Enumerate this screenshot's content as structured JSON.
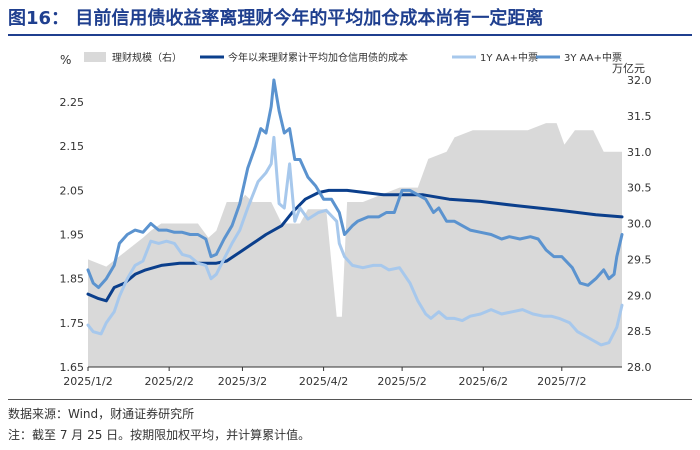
{
  "figure": {
    "title": "图16：    目前信用债收益率离理财今年的平均加仓成本尚有一定距离",
    "source_note": "数据来源：Wind，财通证券研究所",
    "footnote": "注：截至 7 月 25 日。按期限加权平均，并计算累计值。"
  },
  "colors": {
    "title": "#1f3f8f",
    "area": "#d9d9d9",
    "cost": "#0b3f8c",
    "aa_1y": "#a7c8ec",
    "aa_3y": "#5b93cf"
  },
  "chart_data": {
    "type": "line",
    "left_axis": {
      "unit": "%",
      "ylim": [
        1.65,
        2.3
      ],
      "ticks": [
        "1.65",
        "1.75",
        "1.85",
        "1.95",
        "2.05",
        "2.15",
        "2.25"
      ]
    },
    "right_axis": {
      "unit": "万亿元",
      "ylim": [
        28.0,
        32.0
      ],
      "ticks": [
        "28.0",
        "28.5",
        "29.0",
        "29.5",
        "30.0",
        "30.5",
        "31.0",
        "31.5",
        "32.0"
      ]
    },
    "x_ticks": [
      "2025/1/2",
      "2025/2/2",
      "2025/3/2",
      "2025/4/2",
      "2025/5/2",
      "2025/6/2",
      "2025/7/2"
    ],
    "x_start": "2025-01-02",
    "x_end": "2025-07-25",
    "legend": {
      "position": "top"
    },
    "series": [
      {
        "name": "理财规模（右）",
        "kind": "area",
        "axis": "right",
        "points": [
          [
            "2025-01-02",
            29.5
          ],
          [
            "2025-01-09",
            29.4
          ],
          [
            "2025-01-16",
            29.6
          ],
          [
            "2025-01-23",
            29.8
          ],
          [
            "2025-01-26",
            29.9
          ],
          [
            "2025-01-30",
            30.0
          ],
          [
            "2025-02-06",
            30.0
          ],
          [
            "2025-02-13",
            30.0
          ],
          [
            "2025-02-17",
            29.8
          ],
          [
            "2025-02-20",
            29.9
          ],
          [
            "2025-02-24",
            30.3
          ],
          [
            "2025-03-01",
            30.3
          ],
          [
            "2025-03-03",
            30.4
          ],
          [
            "2025-03-06",
            30.3
          ],
          [
            "2025-03-13",
            30.3
          ],
          [
            "2025-03-17",
            30.0
          ],
          [
            "2025-03-24",
            30.0
          ],
          [
            "2025-03-27",
            30.2
          ],
          [
            "2025-03-31",
            30.2
          ],
          [
            "2025-04-03",
            30.2
          ],
          [
            "2025-04-07",
            28.7
          ],
          [
            "2025-04-09",
            28.7
          ],
          [
            "2025-04-11",
            30.3
          ],
          [
            "2025-04-17",
            30.3
          ],
          [
            "2025-04-24",
            30.4
          ],
          [
            "2025-05-01",
            30.5
          ],
          [
            "2025-05-08",
            30.5
          ],
          [
            "2025-05-12",
            30.9
          ],
          [
            "2025-05-19",
            31.0
          ],
          [
            "2025-05-22",
            31.2
          ],
          [
            "2025-05-29",
            31.3
          ],
          [
            "2025-06-05",
            31.3
          ],
          [
            "2025-06-12",
            31.3
          ],
          [
            "2025-06-19",
            31.3
          ],
          [
            "2025-06-26",
            31.4
          ],
          [
            "2025-06-30",
            31.4
          ],
          [
            "2025-07-03",
            31.1
          ],
          [
            "2025-07-07",
            31.3
          ],
          [
            "2025-07-14",
            31.3
          ],
          [
            "2025-07-18",
            31.0
          ],
          [
            "2025-07-21",
            31.0
          ],
          [
            "2025-07-25",
            31.0
          ]
        ]
      },
      {
        "name": "今年以来理财累计平均加仓信用债的成本",
        "kind": "line",
        "axis": "left",
        "points": [
          [
            "2025-01-02",
            1.815
          ],
          [
            "2025-01-06",
            1.805
          ],
          [
            "2025-01-09",
            1.8
          ],
          [
            "2025-01-12",
            1.83
          ],
          [
            "2025-01-16",
            1.84
          ],
          [
            "2025-01-20",
            1.86
          ],
          [
            "2025-01-24",
            1.87
          ],
          [
            "2025-01-30",
            1.88
          ],
          [
            "2025-02-06",
            1.885
          ],
          [
            "2025-02-13",
            1.885
          ],
          [
            "2025-02-20",
            1.885
          ],
          [
            "2025-02-24",
            1.89
          ],
          [
            "2025-03-01",
            1.91
          ],
          [
            "2025-03-06",
            1.93
          ],
          [
            "2025-03-11",
            1.95
          ],
          [
            "2025-03-17",
            1.97
          ],
          [
            "2025-03-21",
            2.0
          ],
          [
            "2025-03-26",
            2.03
          ],
          [
            "2025-03-31",
            2.045
          ],
          [
            "2025-04-04",
            2.05
          ],
          [
            "2025-04-11",
            2.05
          ],
          [
            "2025-04-18",
            2.045
          ],
          [
            "2025-04-25",
            2.04
          ],
          [
            "2025-05-01",
            2.04
          ],
          [
            "2025-05-10",
            2.04
          ],
          [
            "2025-05-20",
            2.03
          ],
          [
            "2025-06-01",
            2.025
          ],
          [
            "2025-06-15",
            2.015
          ],
          [
            "2025-07-01",
            2.005
          ],
          [
            "2025-07-15",
            1.995
          ],
          [
            "2025-07-25",
            1.99
          ]
        ]
      },
      {
        "name": "1Y AA+中票",
        "kind": "line",
        "axis": "left",
        "points": [
          [
            "2025-01-02",
            1.745
          ],
          [
            "2025-01-04",
            1.73
          ],
          [
            "2025-01-07",
            1.725
          ],
          [
            "2025-01-09",
            1.75
          ],
          [
            "2025-01-12",
            1.775
          ],
          [
            "2025-01-14",
            1.81
          ],
          [
            "2025-01-17",
            1.85
          ],
          [
            "2025-01-20",
            1.88
          ],
          [
            "2025-01-23",
            1.89
          ],
          [
            "2025-01-26",
            1.935
          ],
          [
            "2025-01-29",
            1.93
          ],
          [
            "2025-02-01",
            1.935
          ],
          [
            "2025-02-04",
            1.93
          ],
          [
            "2025-02-07",
            1.905
          ],
          [
            "2025-02-10",
            1.9
          ],
          [
            "2025-02-13",
            1.885
          ],
          [
            "2025-02-16",
            1.88
          ],
          [
            "2025-02-18",
            1.85
          ],
          [
            "2025-02-20",
            1.86
          ],
          [
            "2025-02-23",
            1.895
          ],
          [
            "2025-02-26",
            1.93
          ],
          [
            "2025-03-01",
            1.96
          ],
          [
            "2025-03-04",
            2.01
          ],
          [
            "2025-03-08",
            2.07
          ],
          [
            "2025-03-11",
            2.09
          ],
          [
            "2025-03-13",
            2.11
          ],
          [
            "2025-03-14",
            2.17
          ],
          [
            "2025-03-16",
            2.02
          ],
          [
            "2025-03-18",
            2.01
          ],
          [
            "2025-03-20",
            2.11
          ],
          [
            "2025-03-22",
            1.98
          ],
          [
            "2025-03-24",
            2.01
          ],
          [
            "2025-03-27",
            1.985
          ],
          [
            "2025-03-31",
            2.0
          ],
          [
            "2025-04-03",
            2.005
          ],
          [
            "2025-04-07",
            1.98
          ],
          [
            "2025-04-08",
            1.93
          ],
          [
            "2025-04-10",
            1.9
          ],
          [
            "2025-04-13",
            1.88
          ],
          [
            "2025-04-17",
            1.875
          ],
          [
            "2025-04-21",
            1.88
          ],
          [
            "2025-04-24",
            1.88
          ],
          [
            "2025-04-27",
            1.87
          ],
          [
            "2025-05-01",
            1.875
          ],
          [
            "2025-05-05",
            1.84
          ],
          [
            "2025-05-08",
            1.8
          ],
          [
            "2025-05-11",
            1.77
          ],
          [
            "2025-05-13",
            1.76
          ],
          [
            "2025-05-16",
            1.775
          ],
          [
            "2025-05-19",
            1.76
          ],
          [
            "2025-05-22",
            1.76
          ],
          [
            "2025-05-25",
            1.755
          ],
          [
            "2025-05-28",
            1.765
          ],
          [
            "2025-06-01",
            1.77
          ],
          [
            "2025-06-05",
            1.78
          ],
          [
            "2025-06-09",
            1.77
          ],
          [
            "2025-06-13",
            1.775
          ],
          [
            "2025-06-17",
            1.78
          ],
          [
            "2025-06-21",
            1.77
          ],
          [
            "2025-06-25",
            1.765
          ],
          [
            "2025-06-28",
            1.765
          ],
          [
            "2025-07-01",
            1.76
          ],
          [
            "2025-07-05",
            1.75
          ],
          [
            "2025-07-08",
            1.73
          ],
          [
            "2025-07-11",
            1.72
          ],
          [
            "2025-07-14",
            1.71
          ],
          [
            "2025-07-17",
            1.7
          ],
          [
            "2025-07-20",
            1.705
          ],
          [
            "2025-07-23",
            1.74
          ],
          [
            "2025-07-25",
            1.79
          ]
        ]
      },
      {
        "name": "3Y AA+中票",
        "kind": "line",
        "axis": "left",
        "points": [
          [
            "2025-01-02",
            1.87
          ],
          [
            "2025-01-04",
            1.84
          ],
          [
            "2025-01-06",
            1.83
          ],
          [
            "2025-01-09",
            1.85
          ],
          [
            "2025-01-12",
            1.88
          ],
          [
            "2025-01-14",
            1.93
          ],
          [
            "2025-01-17",
            1.95
          ],
          [
            "2025-01-20",
            1.96
          ],
          [
            "2025-01-23",
            1.955
          ],
          [
            "2025-01-26",
            1.975
          ],
          [
            "2025-01-29",
            1.96
          ],
          [
            "2025-02-01",
            1.96
          ],
          [
            "2025-02-04",
            1.955
          ],
          [
            "2025-02-07",
            1.955
          ],
          [
            "2025-02-10",
            1.95
          ],
          [
            "2025-02-13",
            1.95
          ],
          [
            "2025-02-16",
            1.94
          ],
          [
            "2025-02-18",
            1.9
          ],
          [
            "2025-02-20",
            1.905
          ],
          [
            "2025-02-23",
            1.94
          ],
          [
            "2025-02-26",
            1.97
          ],
          [
            "2025-03-01",
            2.02
          ],
          [
            "2025-03-04",
            2.1
          ],
          [
            "2025-03-07",
            2.15
          ],
          [
            "2025-03-09",
            2.19
          ],
          [
            "2025-03-11",
            2.18
          ],
          [
            "2025-03-13",
            2.24
          ],
          [
            "2025-03-14",
            2.3
          ],
          [
            "2025-03-16",
            2.23
          ],
          [
            "2025-03-18",
            2.18
          ],
          [
            "2025-03-20",
            2.19
          ],
          [
            "2025-03-22",
            2.12
          ],
          [
            "2025-03-24",
            2.12
          ],
          [
            "2025-03-27",
            2.08
          ],
          [
            "2025-03-30",
            2.06
          ],
          [
            "2025-04-02",
            2.03
          ],
          [
            "2025-04-05",
            2.03
          ],
          [
            "2025-04-08",
            2.0
          ],
          [
            "2025-04-10",
            1.95
          ],
          [
            "2025-04-13",
            1.97
          ],
          [
            "2025-04-15",
            1.98
          ],
          [
            "2025-04-19",
            1.99
          ],
          [
            "2025-04-23",
            1.99
          ],
          [
            "2025-04-26",
            2.0
          ],
          [
            "2025-04-29",
            2.0
          ],
          [
            "2025-05-02",
            2.05
          ],
          [
            "2025-05-05",
            2.05
          ],
          [
            "2025-05-08",
            2.04
          ],
          [
            "2025-05-11",
            2.03
          ],
          [
            "2025-05-14",
            2.0
          ],
          [
            "2025-05-16",
            2.01
          ],
          [
            "2025-05-19",
            1.98
          ],
          [
            "2025-05-22",
            1.98
          ],
          [
            "2025-05-25",
            1.97
          ],
          [
            "2025-05-28",
            1.96
          ],
          [
            "2025-06-01",
            1.955
          ],
          [
            "2025-06-05",
            1.95
          ],
          [
            "2025-06-09",
            1.94
          ],
          [
            "2025-06-12",
            1.945
          ],
          [
            "2025-06-16",
            1.94
          ],
          [
            "2025-06-20",
            1.945
          ],
          [
            "2025-06-23",
            1.94
          ],
          [
            "2025-06-26",
            1.915
          ],
          [
            "2025-06-29",
            1.9
          ],
          [
            "2025-07-02",
            1.9
          ],
          [
            "2025-07-06",
            1.875
          ],
          [
            "2025-07-09",
            1.84
          ],
          [
            "2025-07-12",
            1.835
          ],
          [
            "2025-07-15",
            1.85
          ],
          [
            "2025-07-18",
            1.87
          ],
          [
            "2025-07-20",
            1.85
          ],
          [
            "2025-07-22",
            1.86
          ],
          [
            "2025-07-23",
            1.9
          ],
          [
            "2025-07-25",
            1.95
          ]
        ]
      }
    ]
  }
}
